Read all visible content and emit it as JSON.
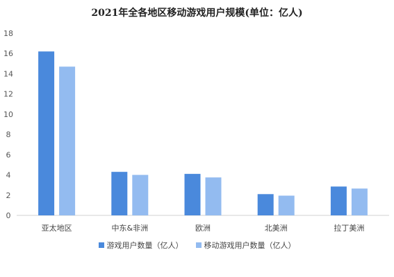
{
  "chart_data": {
    "type": "bar",
    "title": "2021年全各地区移动游戏用户规模(单位：亿人)",
    "categories": [
      "亚太地区",
      "中东&非洲",
      "欧洲",
      "北美洲",
      "拉丁美洲"
    ],
    "series": [
      {
        "name": "游戏用户数量（亿人）",
        "color": "#4a89dc",
        "values": [
          16.2,
          4.3,
          4.1,
          2.1,
          2.85
        ]
      },
      {
        "name": "移动游戏用户数量（亿人）",
        "color": "#93bbf0",
        "values": [
          14.7,
          4.0,
          3.75,
          1.95,
          2.65
        ]
      }
    ],
    "ylim": [
      0,
      18
    ],
    "yticks": [
      "0",
      "2",
      "4",
      "6",
      "8",
      "10",
      "12",
      "14",
      "16",
      "18"
    ],
    "grid": false,
    "legend_position": "bottom"
  }
}
